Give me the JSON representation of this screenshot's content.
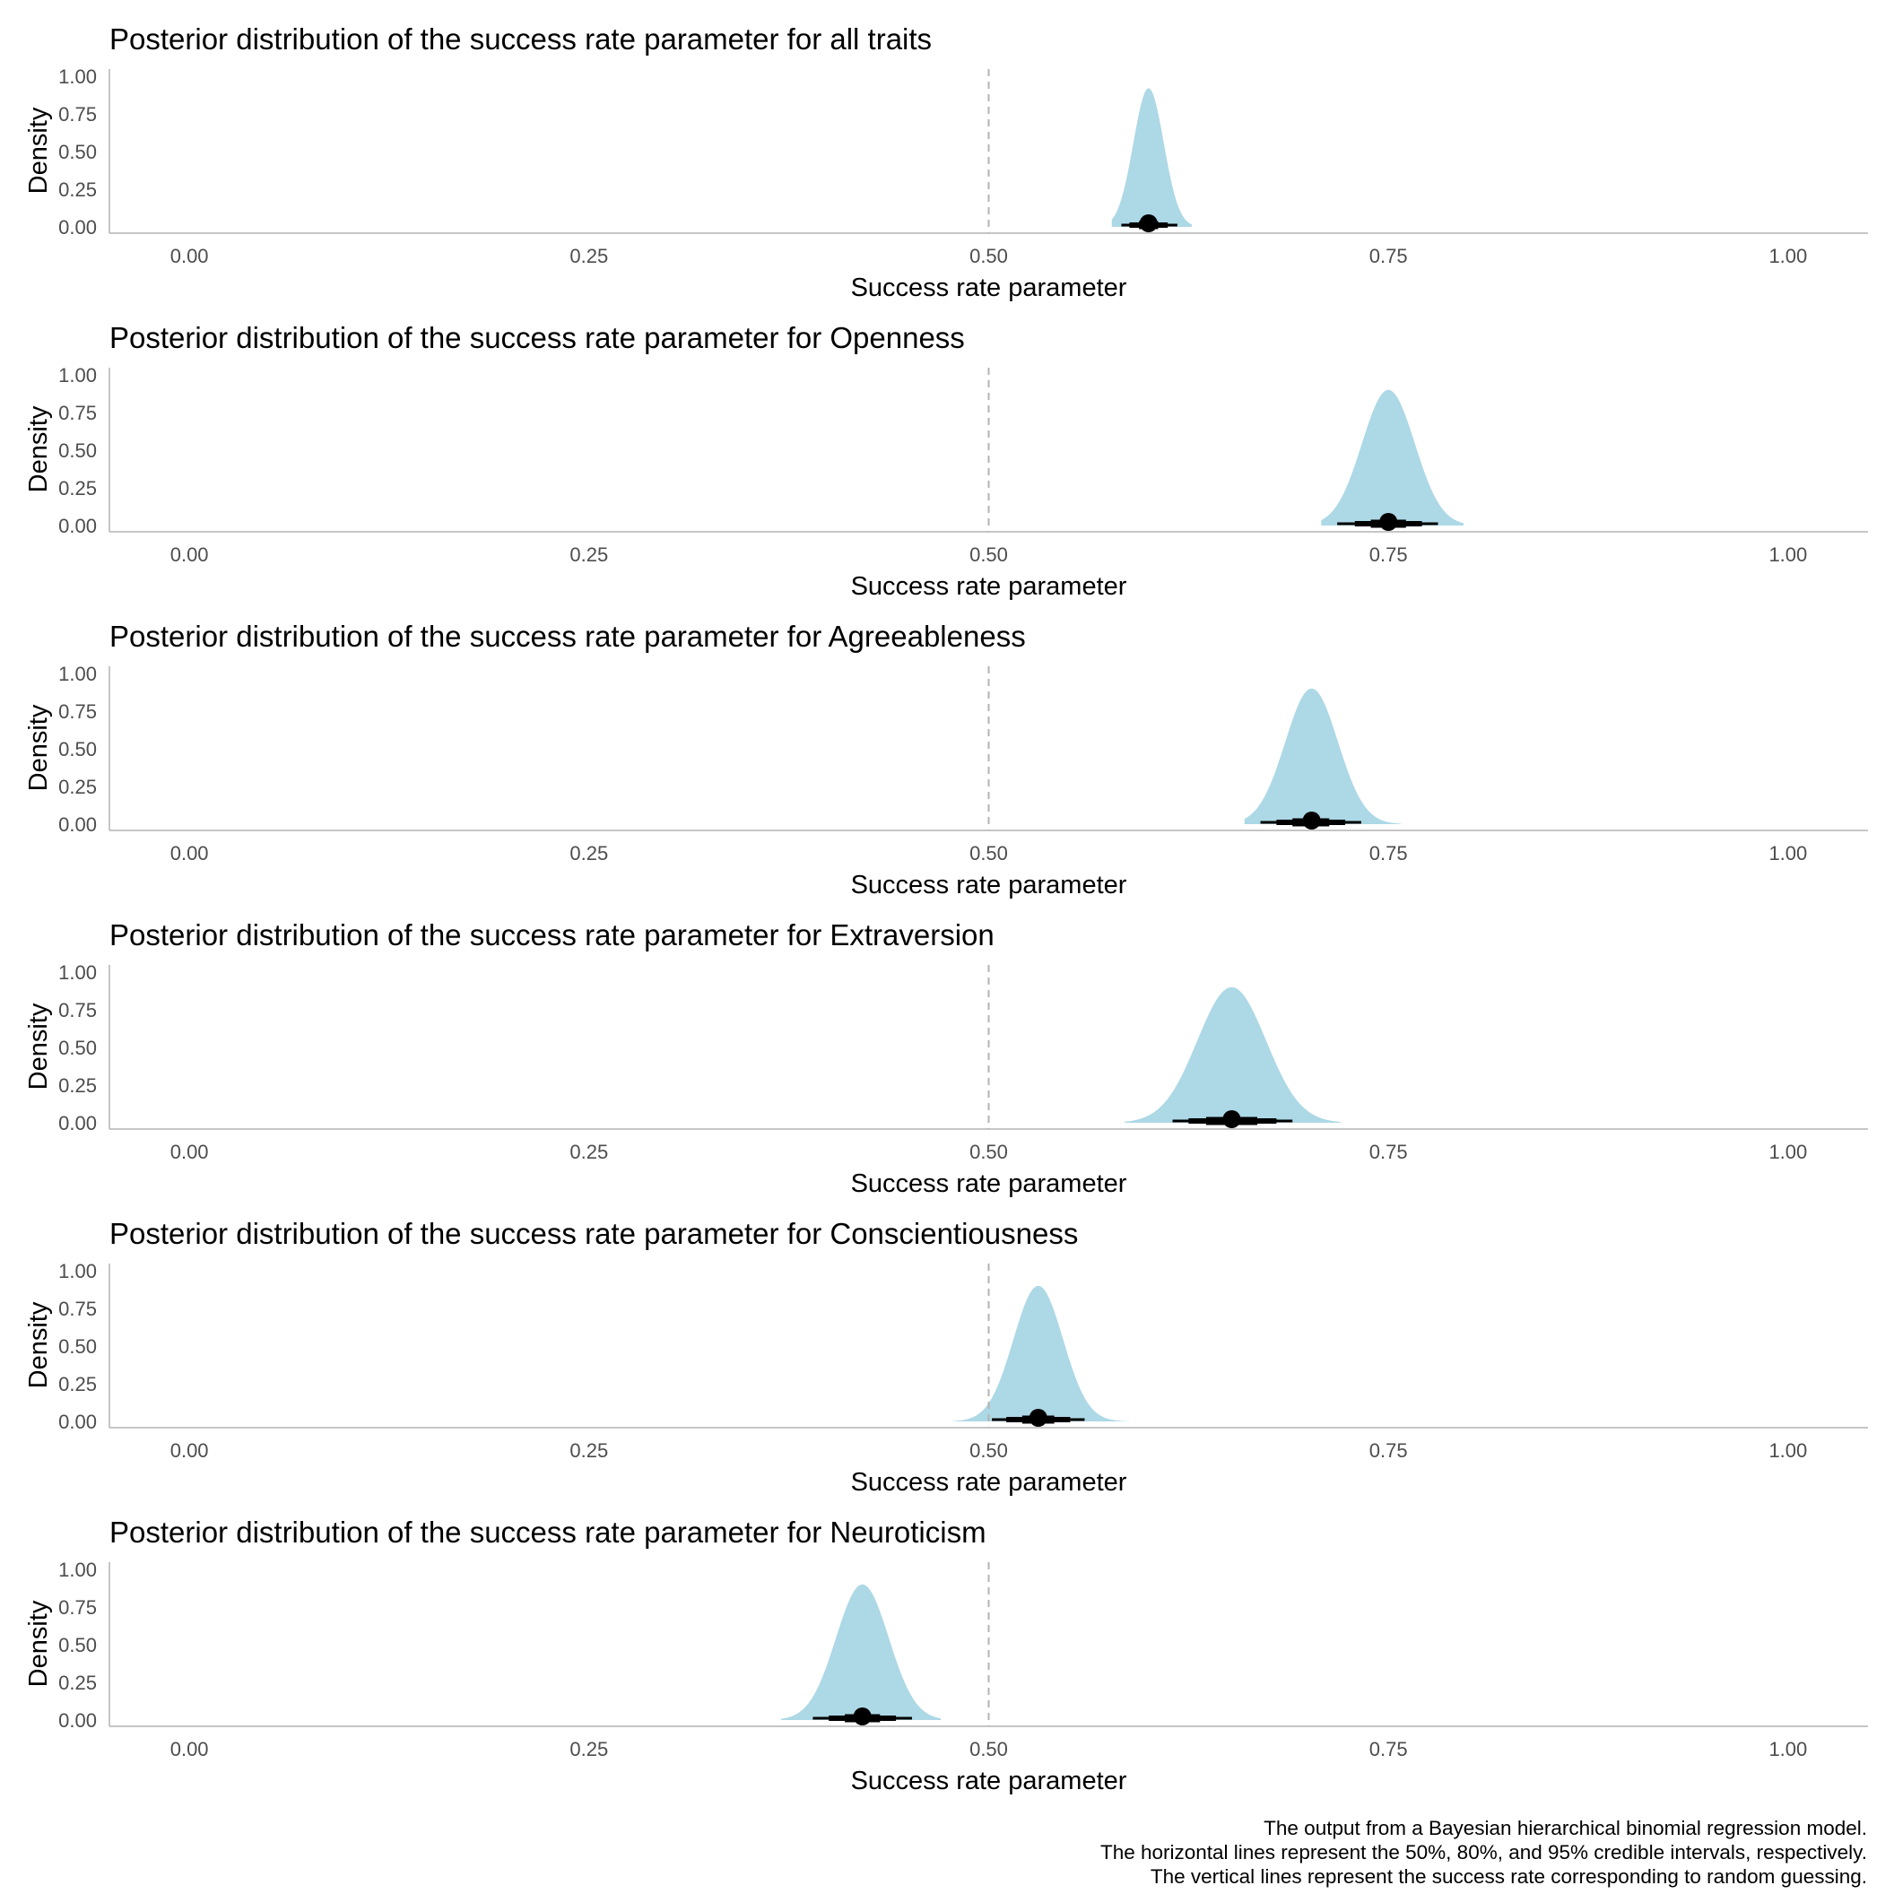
{
  "chart_data": [
    {
      "type": "area",
      "title": "Posterior distribution of the success rate parameter for all traits",
      "xlabel": "Success rate parameter",
      "ylabel": "Density",
      "xlim": [
        -0.05,
        1.05
      ],
      "ylim": [
        0,
        1.0
      ],
      "x_ticks": [
        "0.00",
        "0.25",
        "0.50",
        "0.75",
        "1.00"
      ],
      "y_ticks": [
        "0.00",
        "0.25",
        "0.50",
        "0.75",
        "1.00"
      ],
      "reference_line_x": 0.5,
      "density_mean": 0.6,
      "density_sd": 0.0095,
      "density_peak": 0.92,
      "density_extent": [
        0.577,
        0.627
      ],
      "point_estimate": 0.6,
      "interval_50": [
        0.594,
        0.606
      ],
      "interval_80": [
        0.588,
        0.612
      ],
      "interval_95": [
        0.583,
        0.618
      ],
      "fill_color": "#add8e6",
      "grid": false
    },
    {
      "type": "area",
      "title": "Posterior distribution of the success rate parameter for Openness",
      "xlabel": "Success rate parameter",
      "ylabel": "Density",
      "xlim": [
        -0.05,
        1.05
      ],
      "ylim": [
        0,
        1.0
      ],
      "x_ticks": [
        "0.00",
        "0.25",
        "0.50",
        "0.75",
        "1.00"
      ],
      "y_ticks": [
        "0.00",
        "0.25",
        "0.50",
        "0.75",
        "1.00"
      ],
      "reference_line_x": 0.5,
      "density_mean": 0.75,
      "density_sd": 0.0165,
      "density_peak": 0.9,
      "density_extent": [
        0.708,
        0.797
      ],
      "point_estimate": 0.75,
      "interval_50": [
        0.739,
        0.761
      ],
      "interval_80": [
        0.729,
        0.771
      ],
      "interval_95": [
        0.718,
        0.781
      ],
      "fill_color": "#add8e6",
      "grid": false
    },
    {
      "type": "area",
      "title": "Posterior distribution of the success rate parameter for Agreeableness",
      "xlabel": "Success rate parameter",
      "ylabel": "Density",
      "xlim": [
        -0.05,
        1.05
      ],
      "ylim": [
        0,
        1.0
      ],
      "x_ticks": [
        "0.00",
        "0.25",
        "0.50",
        "0.75",
        "1.00"
      ],
      "y_ticks": [
        "0.00",
        "0.25",
        "0.50",
        "0.75",
        "1.00"
      ],
      "reference_line_x": 0.5,
      "density_mean": 0.702,
      "density_sd": 0.0165,
      "density_peak": 0.9,
      "density_extent": [
        0.66,
        0.758
      ],
      "point_estimate": 0.702,
      "interval_50": [
        0.69,
        0.713
      ],
      "interval_80": [
        0.68,
        0.723
      ],
      "interval_95": [
        0.67,
        0.733
      ],
      "fill_color": "#add8e6",
      "grid": false
    },
    {
      "type": "area",
      "title": "Posterior distribution of the success rate parameter for Extraversion",
      "xlabel": "Success rate parameter",
      "ylabel": "Density",
      "xlim": [
        -0.05,
        1.05
      ],
      "ylim": [
        0,
        1.0
      ],
      "x_ticks": [
        "0.00",
        "0.25",
        "0.50",
        "0.75",
        "1.00"
      ],
      "y_ticks": [
        "0.00",
        "0.25",
        "0.50",
        "0.75",
        "1.00"
      ],
      "reference_line_x": 0.5,
      "density_mean": 0.652,
      "density_sd": 0.0215,
      "density_peak": 0.9,
      "density_extent": [
        0.585,
        0.72
      ],
      "point_estimate": 0.652,
      "interval_50": [
        0.636,
        0.668
      ],
      "interval_80": [
        0.625,
        0.68
      ],
      "interval_95": [
        0.615,
        0.69
      ],
      "fill_color": "#add8e6",
      "grid": false
    },
    {
      "type": "area",
      "title": "Posterior distribution of the success rate parameter for Conscientiousness",
      "xlabel": "Success rate parameter",
      "ylabel": "Density",
      "xlim": [
        -0.05,
        1.05
      ],
      "ylim": [
        0,
        1.0
      ],
      "x_ticks": [
        "0.00",
        "0.25",
        "0.50",
        "0.75",
        "1.00"
      ],
      "y_ticks": [
        "0.00",
        "0.25",
        "0.50",
        "0.75",
        "1.00"
      ],
      "reference_line_x": 0.5,
      "density_mean": 0.531,
      "density_sd": 0.0155,
      "density_peak": 0.9,
      "density_extent": [
        0.478,
        0.588
      ],
      "point_estimate": 0.531,
      "interval_50": [
        0.521,
        0.541
      ],
      "interval_80": [
        0.511,
        0.551
      ],
      "interval_95": [
        0.502,
        0.56
      ],
      "fill_color": "#add8e6",
      "grid": false
    },
    {
      "type": "area",
      "title": "Posterior distribution of the success rate parameter for Neuroticism",
      "xlabel": "Success rate parameter",
      "ylabel": "Density",
      "xlim": [
        -0.05,
        1.05
      ],
      "ylim": [
        0,
        1.0
      ],
      "x_ticks": [
        "0.00",
        "0.25",
        "0.50",
        "0.75",
        "1.00"
      ],
      "y_ticks": [
        "0.00",
        "0.25",
        "0.50",
        "0.75",
        "1.00"
      ],
      "reference_line_x": 0.5,
      "density_mean": 0.421,
      "density_sd": 0.0165,
      "density_peak": 0.9,
      "density_extent": [
        0.37,
        0.47
      ],
      "point_estimate": 0.421,
      "interval_50": [
        0.41,
        0.432
      ],
      "interval_80": [
        0.4,
        0.442
      ],
      "interval_95": [
        0.39,
        0.452
      ],
      "fill_color": "#add8e6",
      "grid": false
    }
  ],
  "caption": {
    "line1": "The output from a Bayesian hierarchical binomial regression model.",
    "line2": "The horizontal lines represent the 50%, 80%, and 95% credible intervals, respectively.",
    "line3": "The vertical lines represent the success rate corresponding to random guessing."
  }
}
